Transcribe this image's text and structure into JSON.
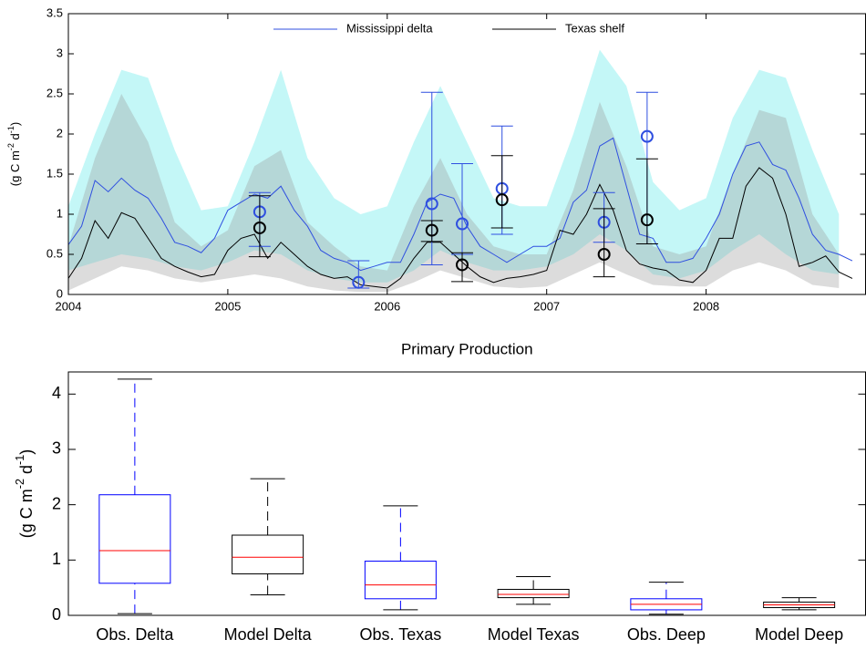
{
  "chart_data": [
    {
      "type": "line",
      "xlim": [
        2004,
        2009
      ],
      "xticks": [
        2004,
        2005,
        2006,
        2007,
        2008
      ],
      "ylim": [
        0,
        3.5
      ],
      "yticks": [
        0,
        0.5,
        1,
        1.5,
        2,
        2.5,
        3,
        3.5
      ],
      "ylabel": [
        "(g C m",
        "-2",
        " d",
        "-1",
        ")"
      ],
      "legend": "top",
      "x": [
        2004,
        2004.083,
        2004.167,
        2004.25,
        2004.333,
        2004.417,
        2004.5,
        2004.583,
        2004.667,
        2004.75,
        2004.833,
        2004.917,
        2005,
        2005.083,
        2005.167,
        2005.25,
        2005.333,
        2005.417,
        2005.5,
        2005.583,
        2005.667,
        2005.75,
        2005.833,
        2005.917,
        2006,
        2006.083,
        2006.167,
        2006.25,
        2006.333,
        2006.417,
        2006.5,
        2006.583,
        2006.667,
        2006.75,
        2006.833,
        2006.917,
        2007,
        2007.083,
        2007.167,
        2007.25,
        2007.333,
        2007.417,
        2007.5,
        2007.583,
        2007.667,
        2007.75,
        2007.833,
        2007.917,
        2008,
        2008.083,
        2008.167,
        2008.25,
        2008.333,
        2008.417,
        2008.5,
        2008.583,
        2008.667,
        2008.75,
        2008.833,
        2008.917
      ],
      "series": [
        {
          "name": "Mississippi delta",
          "color": "#2f4fe0",
          "values": [
            0.62,
            0.85,
            1.42,
            1.28,
            1.45,
            1.3,
            1.2,
            0.95,
            0.65,
            0.6,
            0.52,
            0.7,
            1.05,
            1.15,
            1.25,
            1.2,
            1.35,
            1.05,
            0.85,
            0.55,
            0.45,
            0.4,
            0.3,
            0.35,
            0.4,
            0.4,
            0.75,
            1.15,
            1.25,
            1.2,
            0.85,
            0.6,
            0.5,
            0.4,
            0.5,
            0.6,
            0.6,
            0.7,
            1.15,
            1.3,
            1.85,
            1.95,
            1.35,
            0.75,
            0.7,
            0.4,
            0.4,
            0.45,
            0.7,
            1.0,
            1.5,
            1.85,
            1.9,
            1.62,
            1.55,
            1.2,
            0.75,
            0.55,
            0.5,
            0.42
          ]
        },
        {
          "name": "Texas shelf",
          "color": "#000000",
          "values": [
            0.2,
            0.45,
            0.92,
            0.7,
            1.02,
            0.95,
            0.7,
            0.45,
            0.35,
            0.28,
            0.22,
            0.25,
            0.55,
            0.7,
            0.75,
            0.45,
            0.65,
            0.5,
            0.35,
            0.25,
            0.2,
            0.22,
            0.12,
            0.1,
            0.08,
            0.2,
            0.45,
            0.65,
            0.65,
            0.5,
            0.35,
            0.22,
            0.15,
            0.2,
            0.22,
            0.25,
            0.3,
            0.8,
            0.75,
            1.0,
            1.37,
            1.05,
            0.55,
            0.38,
            0.33,
            0.3,
            0.18,
            0.15,
            0.3,
            0.7,
            0.7,
            1.35,
            1.58,
            1.45,
            1.0,
            0.35,
            0.4,
            0.48,
            0.28,
            0.2
          ]
        }
      ],
      "bands": [
        {
          "color": "#c4f7f7",
          "x": [
            2004,
            2004.167,
            2004.333,
            2004.5,
            2004.667,
            2004.833,
            2005,
            2005.167,
            2005.333,
            2005.5,
            2005.667,
            2005.833,
            2006,
            2006.167,
            2006.333,
            2006.5,
            2006.667,
            2006.833,
            2007,
            2007.167,
            2007.333,
            2007.5,
            2007.667,
            2007.833,
            2008,
            2008.167,
            2008.333,
            2008.5,
            2008.667,
            2008.833
          ],
          "upper": [
            1.1,
            2.0,
            2.8,
            2.7,
            1.8,
            1.05,
            1.1,
            1.9,
            2.8,
            1.7,
            1.2,
            1.0,
            1.1,
            1.9,
            2.6,
            1.9,
            1.2,
            1.1,
            1.1,
            2.0,
            3.05,
            2.6,
            1.4,
            1.05,
            1.2,
            2.2,
            2.8,
            2.7,
            1.8,
            1.0
          ],
          "lower": [
            0.3,
            0.4,
            0.5,
            0.45,
            0.35,
            0.3,
            0.4,
            0.55,
            0.5,
            0.3,
            0.2,
            0.15,
            0.15,
            0.3,
            0.55,
            0.4,
            0.3,
            0.3,
            0.35,
            0.5,
            0.75,
            0.55,
            0.25,
            0.2,
            0.3,
            0.55,
            0.75,
            0.5,
            0.3,
            0.25
          ]
        },
        {
          "color": "#9a9a9a",
          "x": [
            2004,
            2004.167,
            2004.333,
            2004.5,
            2004.667,
            2004.833,
            2005,
            2005.167,
            2005.333,
            2005.5,
            2005.667,
            2005.833,
            2006,
            2006.167,
            2006.333,
            2006.5,
            2006.667,
            2006.833,
            2007,
            2007.167,
            2007.333,
            2007.5,
            2007.667,
            2007.833,
            2008,
            2008.167,
            2008.333,
            2008.5,
            2008.667,
            2008.833
          ],
          "upper": [
            0.6,
            1.7,
            2.5,
            1.9,
            0.9,
            0.6,
            0.8,
            1.6,
            1.8,
            0.9,
            0.6,
            0.35,
            0.3,
            1.1,
            1.7,
            1.0,
            0.6,
            0.5,
            0.5,
            1.3,
            2.4,
            1.6,
            0.6,
            0.5,
            0.6,
            1.5,
            2.3,
            2.2,
            1.0,
            0.5
          ],
          "lower": [
            0.05,
            0.2,
            0.35,
            0.3,
            0.2,
            0.15,
            0.2,
            0.25,
            0.2,
            0.1,
            0.05,
            0.03,
            0.03,
            0.15,
            0.3,
            0.2,
            0.1,
            0.08,
            0.1,
            0.25,
            0.4,
            0.25,
            0.12,
            0.1,
            0.1,
            0.3,
            0.4,
            0.3,
            0.12,
            0.08
          ]
        }
      ],
      "observations": [
        {
          "color": "#2f4fe0",
          "x": [
            2005.2,
            2005.82,
            2006.28,
            2006.47,
            2006.72,
            2007.36,
            2007.63
          ],
          "values": [
            1.03,
            0.15,
            1.13,
            0.88,
            1.32,
            0.9,
            1.97
          ],
          "lower": [
            0.6,
            0.08,
            0.37,
            0.5,
            0.75,
            0.65,
            0.63
          ],
          "upper": [
            1.27,
            0.42,
            2.52,
            1.63,
            2.1,
            1.27,
            2.52
          ]
        },
        {
          "color": "#000000",
          "x": [
            2005.2,
            2006.28,
            2006.47,
            2006.72,
            2007.36,
            2007.63
          ],
          "values": [
            0.83,
            0.8,
            0.37,
            1.18,
            0.5,
            0.93
          ],
          "lower": [
            0.47,
            0.66,
            0.16,
            0.83,
            0.22,
            0.63
          ],
          "upper": [
            1.23,
            0.92,
            0.52,
            1.73,
            1.07,
            1.69
          ]
        }
      ]
    },
    {
      "type": "box",
      "title": "Primary Production",
      "ylim": [
        0,
        4.4
      ],
      "yticks": [
        0,
        1,
        2,
        3,
        4
      ],
      "ylabel": [
        "(g C m",
        "-2",
        " d",
        "-1",
        ")"
      ],
      "median_color": "#ff0000",
      "categories": [
        "Obs. Delta",
        "Model Delta",
        "Obs. Texas",
        "Model Texas",
        "Obs. Deep",
        "Model Deep"
      ],
      "colors": [
        "#0000ff",
        "#000000",
        "#0000ff",
        "#000000",
        "#0000ff",
        "#000000"
      ],
      "min": [
        0.03,
        0.37,
        0.1,
        0.2,
        0.02,
        0.1
      ],
      "q1": [
        0.58,
        0.75,
        0.3,
        0.32,
        0.1,
        0.14
      ],
      "median": [
        1.17,
        1.05,
        0.55,
        0.38,
        0.2,
        0.19
      ],
      "q3": [
        2.18,
        1.45,
        0.98,
        0.47,
        0.3,
        0.24
      ],
      "max": [
        4.27,
        2.47,
        1.98,
        0.7,
        0.6,
        0.32
      ]
    }
  ]
}
